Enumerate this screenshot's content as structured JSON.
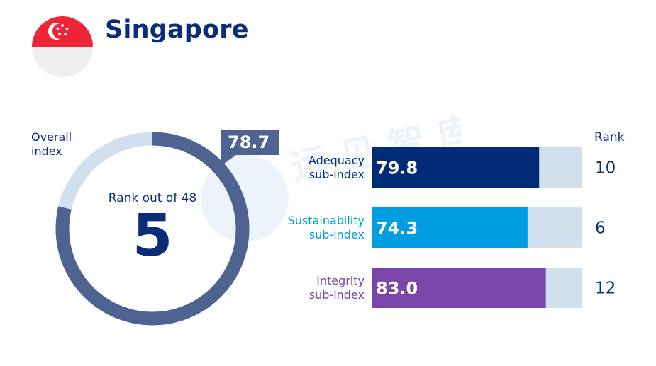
{
  "header": {
    "title": "Singapore"
  },
  "overall": {
    "label": "Overall\nindex",
    "score": "78.7",
    "rank_caption": "Rank out of 48",
    "rank": "5"
  },
  "rank_header": "Rank",
  "colors": {
    "navy": "#0a2d78",
    "donut_fill": "#4f6390",
    "donut_track": "#d2e0ee",
    "adequacy": "#002c77",
    "sustainability": "#009de0",
    "integrity": "#7b46ac",
    "bar_track": "#d2e0ee",
    "flag_red": "#ee2536"
  },
  "chart_data": {
    "type": "bar",
    "orientation": "horizontal",
    "xlim": [
      0,
      100
    ],
    "overall": {
      "value": 78.7,
      "label": "78.7",
      "rank": 5,
      "rank_out_of": 48
    },
    "categories": [
      "Adequacy\nsub-index",
      "Sustainability\nsub-index",
      "Integrity\nsub-index"
    ],
    "values": [
      79.8,
      74.3,
      83.0
    ],
    "value_labels": [
      "79.8",
      "74.3",
      "83.0"
    ],
    "ranks": [
      "10",
      "6",
      "12"
    ],
    "colors": [
      "#002c77",
      "#009de0",
      "#7b46ac"
    ]
  }
}
